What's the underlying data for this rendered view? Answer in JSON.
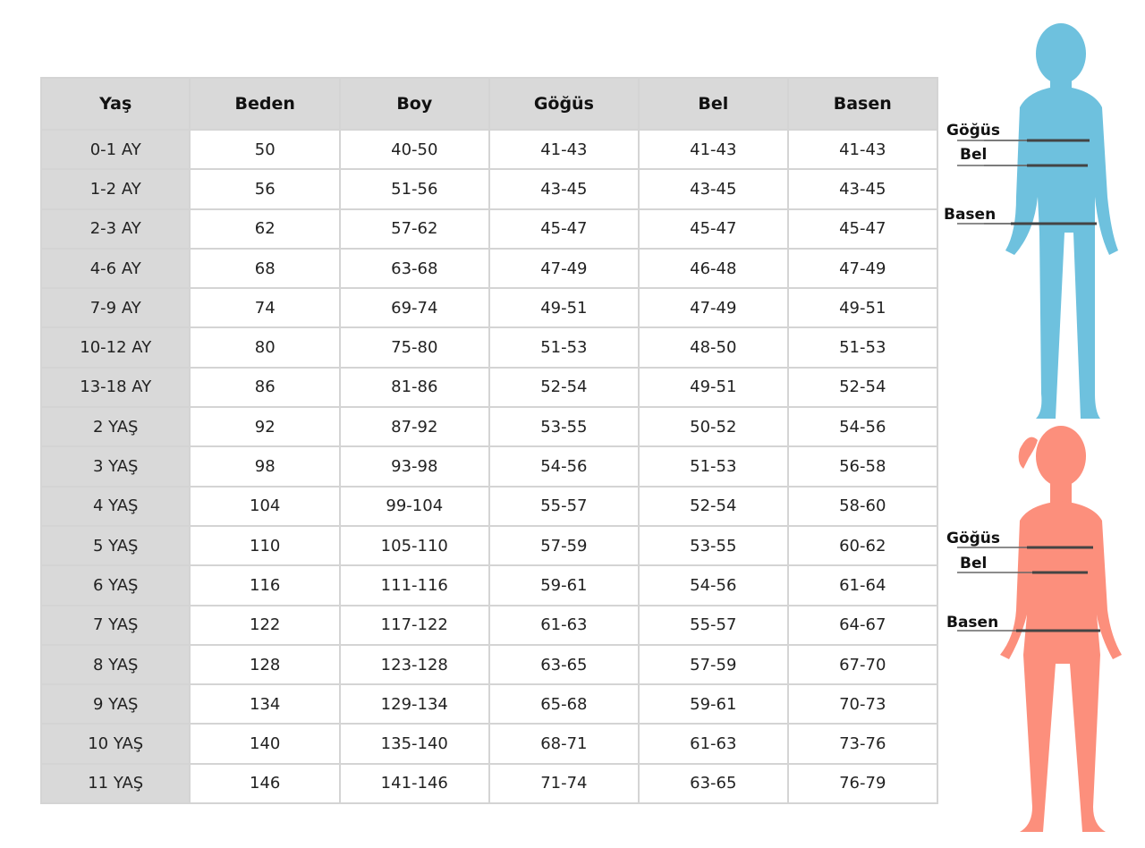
{
  "table": {
    "headers": [
      "Yaş",
      "Beden",
      "Boy",
      "Göğüs",
      "Bel",
      "Basen"
    ],
    "rows": [
      [
        "0-1 AY",
        "50",
        "40-50",
        "41-43",
        "41-43",
        "41-43"
      ],
      [
        "1-2 AY",
        "56",
        "51-56",
        "43-45",
        "43-45",
        "43-45"
      ],
      [
        "2-3 AY",
        "62",
        "57-62",
        "45-47",
        "45-47",
        "45-47"
      ],
      [
        "4-6 AY",
        "68",
        "63-68",
        "47-49",
        "46-48",
        "47-49"
      ],
      [
        "7-9 AY",
        "74",
        "69-74",
        "49-51",
        "47-49",
        "49-51"
      ],
      [
        "10-12 AY",
        "80",
        "75-80",
        "51-53",
        "48-50",
        "51-53"
      ],
      [
        "13-18 AY",
        "86",
        "81-86",
        "52-54",
        "49-51",
        "52-54"
      ],
      [
        "2 YAŞ",
        "92",
        "87-92",
        "53-55",
        "50-52",
        "54-56"
      ],
      [
        "3 YAŞ",
        "98",
        "93-98",
        "54-56",
        "51-53",
        "56-58"
      ],
      [
        "4 YAŞ",
        "104",
        "99-104",
        "55-57",
        "52-54",
        "58-60"
      ],
      [
        "5 YAŞ",
        "110",
        "105-110",
        "57-59",
        "53-55",
        "60-62"
      ],
      [
        "6 YAŞ",
        "116",
        "111-116",
        "59-61",
        "54-56",
        "61-64"
      ],
      [
        "7 YAŞ",
        "122",
        "117-122",
        "61-63",
        "55-57",
        "64-67"
      ],
      [
        "8 YAŞ",
        "128",
        "123-128",
        "63-65",
        "57-59",
        "67-70"
      ],
      [
        "9 YAŞ",
        "134",
        "129-134",
        "65-68",
        "59-61",
        "70-73"
      ],
      [
        "10 YAŞ",
        "140",
        "135-140",
        "68-71",
        "61-63",
        "73-76"
      ],
      [
        "11 YAŞ",
        "146",
        "141-146",
        "71-74",
        "63-65",
        "76-79"
      ]
    ]
  },
  "figures": {
    "boy": {
      "color": "#6ec1de",
      "labels": {
        "chest": "Göğüs",
        "waist": "Bel",
        "hip": "Basen"
      }
    },
    "girl": {
      "color": "#fc8f7c",
      "labels": {
        "chest": "Göğüs",
        "waist": "Bel",
        "hip": "Basen"
      }
    }
  }
}
